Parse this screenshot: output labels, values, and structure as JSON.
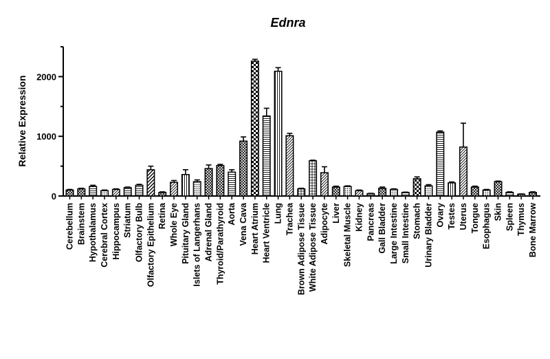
{
  "chart_data": {
    "type": "bar",
    "title": "Ednra",
    "xlabel": "",
    "ylabel": "Relative Expression",
    "ylim": [
      0,
      2500
    ],
    "yticks": [
      0,
      1000,
      2000
    ],
    "grid": false,
    "legend": "none",
    "categories": [
      "Cerebellum",
      "Brainstem",
      "Hypothalamus",
      "Cerebral Cortex",
      "Hippocampus",
      "Striatum",
      "Olfactory Bulb",
      "Olfactory Epithelium",
      "Retina",
      "Whole Eye",
      "Pituitary Gland",
      "Islets of Langerhans",
      "Adrenal Gland",
      "Thyroid/Parathyroid",
      "Aorta",
      "Vena Cava",
      "Heart Atrium",
      "Heart Ventricle",
      "Lung",
      "Trachea",
      "Brown Adipose Tissue",
      "White Adipose Tissue",
      "Adipocyte",
      "Liver",
      "Skeletal Muscle",
      "Kidney",
      "Pancreas",
      "Gall Bladder",
      "Large Intestine",
      "Small Intestine",
      "Stomach",
      "Urinary Bladder",
      "Ovary",
      "Testes",
      "Uterus",
      "Tongue",
      "Esophagus",
      "Skin",
      "Spleen",
      "Thymus",
      "Bone Marrow"
    ],
    "values": [
      100,
      120,
      160,
      90,
      110,
      140,
      180,
      440,
      60,
      230,
      360,
      240,
      460,
      510,
      400,
      920,
      2260,
      1340,
      2090,
      1010,
      120,
      590,
      390,
      150,
      160,
      90,
      40,
      130,
      110,
      60,
      290,
      170,
      1070,
      220,
      820,
      150,
      100,
      240,
      60,
      30,
      60
    ],
    "errors": [
      10,
      10,
      20,
      10,
      10,
      10,
      15,
      60,
      10,
      30,
      80,
      30,
      60,
      20,
      40,
      70,
      30,
      130,
      60,
      40,
      10,
      10,
      100,
      15,
      10,
      10,
      5,
      20,
      10,
      5,
      30,
      20,
      20,
      15,
      400,
      15,
      10,
      10,
      10,
      5,
      10
    ],
    "patterns": [
      "crosshatch",
      "crosshatch",
      "hlines",
      "dots",
      "diag",
      "hlines",
      "hlines",
      "diag2",
      "crosshatch",
      "diag",
      "vlines",
      "dots",
      "crosshatch",
      "crosshatch",
      "hlines",
      "crosshatch",
      "checker",
      "hlines",
      "vlines",
      "diag",
      "grid",
      "grid",
      "diag",
      "crosshatch",
      "dots",
      "diag",
      "hlines",
      "crosshatch",
      "dots",
      "hlines",
      "checker",
      "dots",
      "hlines",
      "vlines",
      "diag",
      "crosshatch",
      "dots",
      "crosshatch",
      "hlines",
      "dots",
      "crosshatch"
    ],
    "colors": {
      "bar_stroke": "#000000",
      "fill": "#ffffff",
      "pattern": "#000000"
    }
  }
}
